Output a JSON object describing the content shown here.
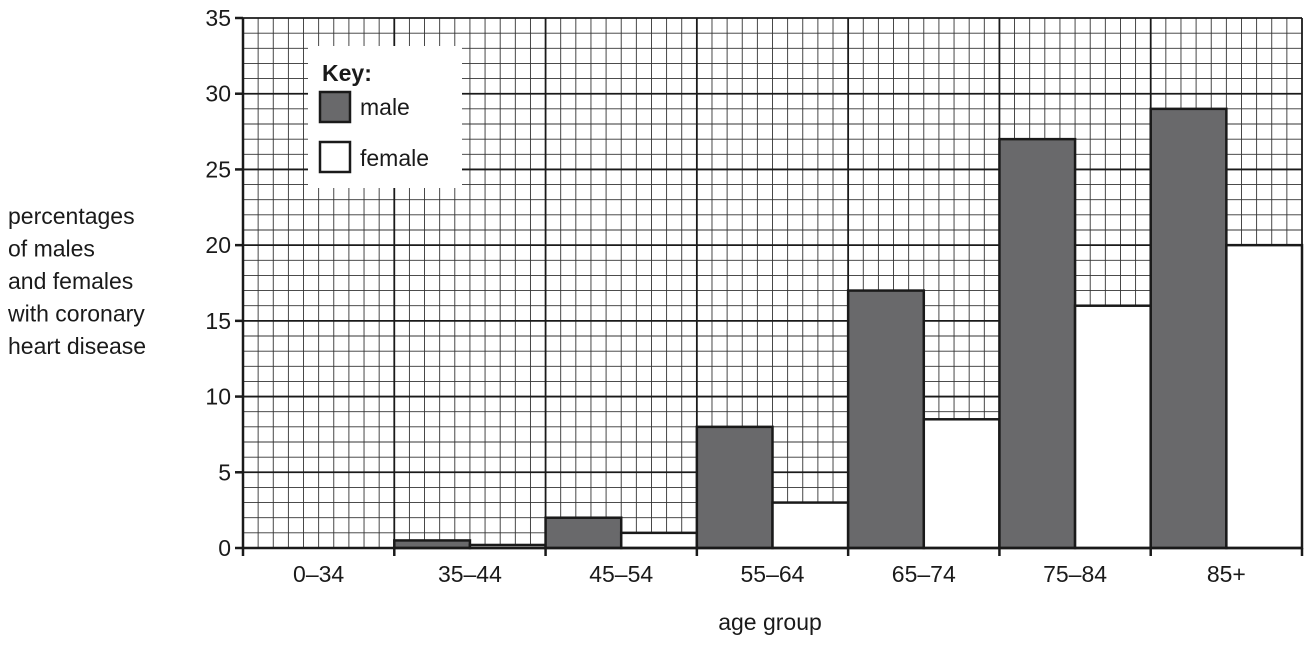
{
  "chart_data": {
    "type": "bar",
    "categories": [
      "0–34",
      "35–44",
      "45–54",
      "55–64",
      "65–74",
      "75–84",
      "85+"
    ],
    "series": [
      {
        "name": "male",
        "values": [
          0,
          0.5,
          2,
          8,
          17,
          27,
          29
        ],
        "color": "#69696b"
      },
      {
        "name": "female",
        "values": [
          0,
          0.2,
          1,
          3,
          8.5,
          16,
          20
        ],
        "color": "#ffffff"
      }
    ],
    "xlabel": "age group",
    "ylabel_lines": [
      "percentages",
      "of males",
      "and females",
      "with coronary",
      "heart disease"
    ],
    "ylim": [
      0,
      35
    ],
    "yticks": [
      0,
      5,
      10,
      15,
      20,
      25,
      30,
      35
    ],
    "grid": true,
    "legend": {
      "title": "Key:",
      "placement": "top-left"
    }
  }
}
